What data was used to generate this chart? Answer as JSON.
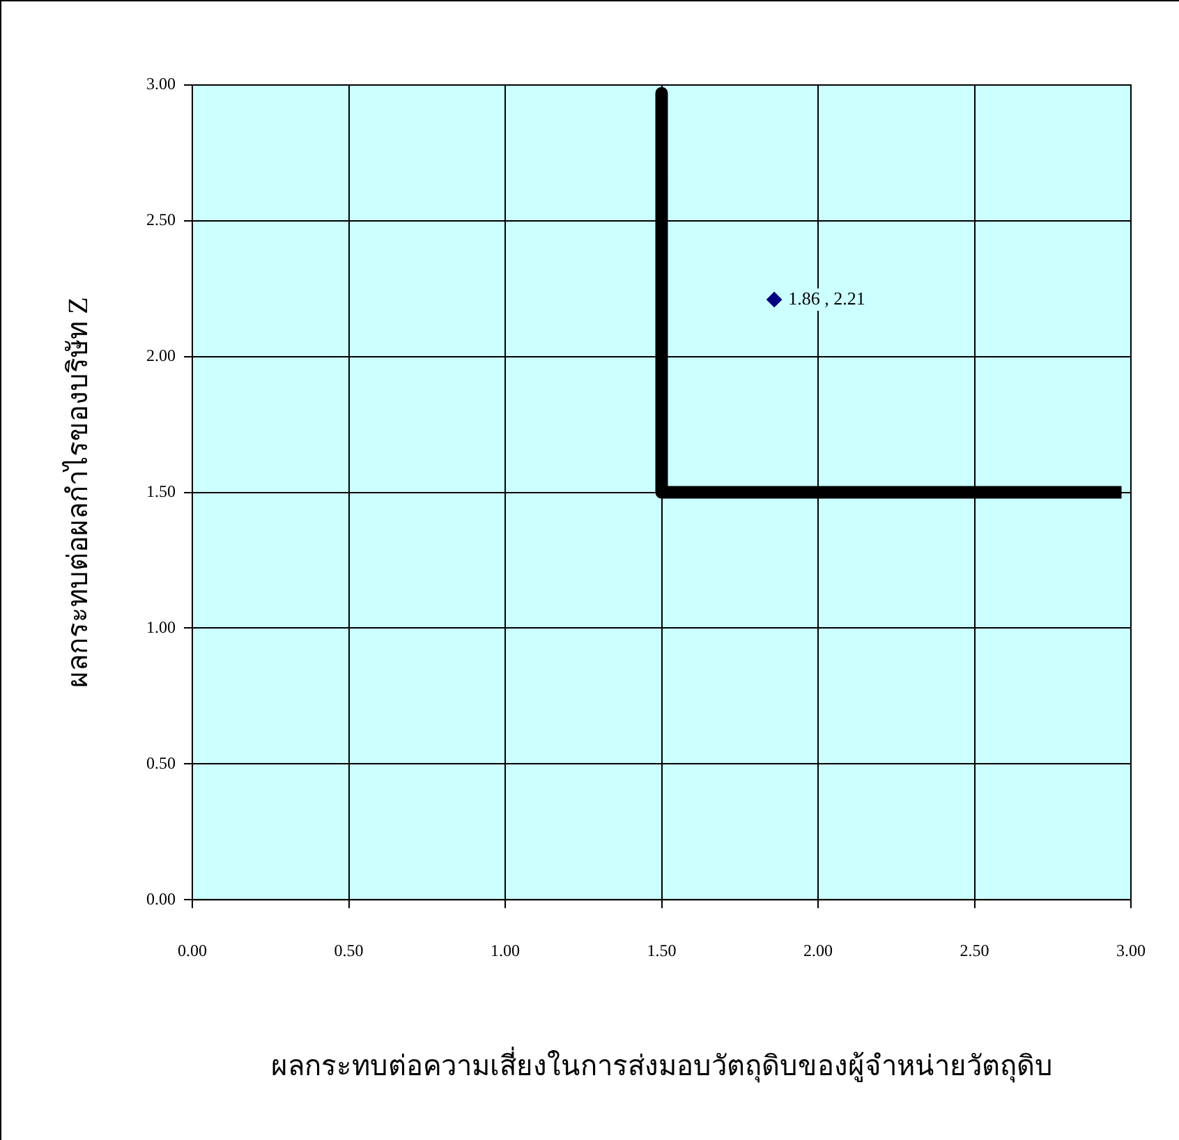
{
  "chart_data": {
    "type": "scatter",
    "xlabel": "ผลกระทบต่อความเสี่ยงในการส่งมอบวัตถุดิบของผู้จำหน่ายวัตถุดิบ",
    "ylabel": "ผลกระทบต่อผลกำไรของบริษัท Z",
    "xlim": [
      0,
      3
    ],
    "ylim": [
      0,
      3
    ],
    "xticks": [
      {
        "value": 0,
        "label": "0.00"
      },
      {
        "value": 0.5,
        "label": "0.50"
      },
      {
        "value": 1,
        "label": "1.00"
      },
      {
        "value": 1.5,
        "label": "1.50"
      },
      {
        "value": 2,
        "label": "2.00"
      },
      {
        "value": 2.5,
        "label": "2.50"
      },
      {
        "value": 3,
        "label": "3.00"
      }
    ],
    "yticks": [
      {
        "value": 0,
        "label": "0.00"
      },
      {
        "value": 0.5,
        "label": "0.50"
      },
      {
        "value": 1,
        "label": "1.00"
      },
      {
        "value": 1.5,
        "label": "1.50"
      },
      {
        "value": 2,
        "label": "2.00"
      },
      {
        "value": 2.5,
        "label": "2.50"
      },
      {
        "value": 3,
        "label": "3.00"
      }
    ],
    "grid": true,
    "legend": false,
    "marker": "diamond",
    "series": [
      {
        "type": "line",
        "color": "#000000",
        "x": [
          1.5,
          1.5,
          2.97
        ],
        "values": [
          2.97,
          1.5,
          1.5
        ],
        "marker": "none"
      },
      {
        "type": "scatter",
        "color": "#000080",
        "x": [
          1.86
        ],
        "values": [
          2.21
        ],
        "value_labels": [
          "1.86 , 2.21"
        ]
      }
    ]
  }
}
